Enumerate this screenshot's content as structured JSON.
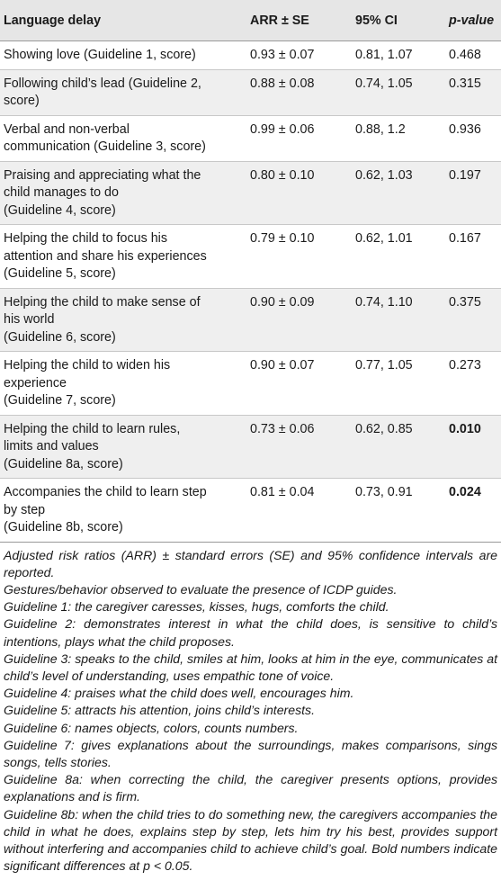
{
  "headers": {
    "col1": "Language delay",
    "col2": "ARR ± SE",
    "col3": "95% CI",
    "col4": "p-value"
  },
  "rows": [
    {
      "label_lines": [
        "Showing love (Guideline 1, score)"
      ],
      "arr": "0.93 ± 0.07",
      "ci": "0.81, 1.07",
      "p": "0.468",
      "bold": false
    },
    {
      "label_lines": [
        "Following child’s lead (Guideline 2,",
        "score)"
      ],
      "arr": "0.88 ± 0.08",
      "ci": "0.74, 1.05",
      "p": "0.315",
      "bold": false
    },
    {
      "label_lines": [
        "Verbal and non-verbal",
        "communication (Guideline 3, score)"
      ],
      "arr": "0.99 ± 0.06",
      "ci": "0.88, 1.2",
      "p": "0.936",
      "bold": false
    },
    {
      "label_lines": [
        "Praising and appreciating what the",
        "child manages to do",
        "(Guideline 4, score)"
      ],
      "arr": "0.80 ± 0.10",
      "ci": "0.62, 1.03",
      "p": "0.197",
      "bold": false
    },
    {
      "label_lines": [
        "Helping the child to focus his",
        "attention and share his experiences",
        "(Guideline 5, score)"
      ],
      "arr": "0.79 ± 0.10",
      "ci": "0.62, 1.01",
      "p": "0.167",
      "bold": false
    },
    {
      "label_lines": [
        "Helping the child to make sense of",
        "his world",
        "(Guideline 6, score)"
      ],
      "arr": "0.90 ± 0.09",
      "ci": "0.74, 1.10",
      "p": "0.375",
      "bold": false
    },
    {
      "label_lines": [
        "Helping the child to widen his",
        "experience",
        "(Guideline 7, score)"
      ],
      "arr": "0.90 ± 0.07",
      "ci": "0.77, 1.05",
      "p": "0.273",
      "bold": false
    },
    {
      "label_lines": [
        "Helping the child to learn rules,",
        "limits and values",
        "(Guideline 8a, score)"
      ],
      "arr": "0.73 ± 0.06",
      "ci": "0.62, 0.85",
      "p": "0.010",
      "bold": true
    },
    {
      "label_lines": [
        "Accompanies the child to learn step",
        "by step",
        "(Guideline 8b, score)"
      ],
      "arr": "0.81 ± 0.04",
      "ci": "0.73, 0.91",
      "p": "0.024",
      "bold": true
    }
  ],
  "footnotes": [
    "Adjusted risk ratios (ARR) ± standard errors (SE) and 95% confidence intervals are reported.",
    "Gestures/behavior observed to evaluate the presence of ICDP guides.",
    "Guideline 1: the caregiver caresses, kisses, hugs, comforts the child.",
    "Guideline 2: demonstrates interest in what the child does, is sensitive to child’s intentions, plays what the child proposes.",
    "Guideline 3: speaks to the child, smiles at him, looks at him in the eye, communicates at child’s level of understanding, uses empathic tone of voice.",
    "Guideline 4: praises what the child does well, encourages him.",
    "Guideline 5: attracts his attention, joins child’s interests.",
    "Guideline 6: names objects, colors, counts numbers.",
    "Guideline 7: gives explanations about the surroundings, makes comparisons, sings songs, tells stories.",
    "Guideline 8a: when correcting the child, the caregiver presents options, provides explanations and is firm.",
    "Guideline 8b: when the child tries to do something new, the caregivers accompanies the child in what he does, explains step by step, lets him try his best, provides support without interfering and accompanies child to achieve child’s goal. Bold numbers indicate significant differences at p < 0.05."
  ]
}
